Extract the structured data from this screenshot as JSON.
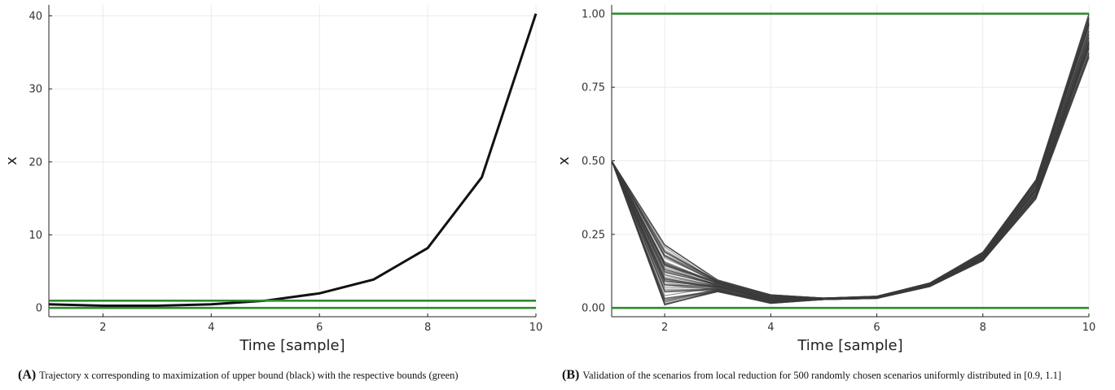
{
  "chart_data": [
    {
      "panel": "A",
      "type": "line",
      "xlabel": "Time [sample]",
      "ylabel": "x",
      "xlim": [
        1,
        10
      ],
      "ylim": [
        -1.2,
        41.5
      ],
      "xticks": [
        2,
        4,
        6,
        8,
        10
      ],
      "yticks": [
        0,
        10,
        20,
        30,
        40
      ],
      "ytick_labels": [
        "0",
        "10",
        "20",
        "30",
        "40"
      ],
      "grid": true,
      "legend": "none",
      "series": [
        {
          "color": "#111111",
          "x": [
            1,
            2,
            3,
            4,
            5,
            6,
            7,
            8,
            9,
            10
          ],
          "y": [
            0.5,
            0.3,
            0.3,
            0.5,
            1.0,
            2.0,
            3.9,
            8.2,
            17.9,
            40.3
          ]
        },
        {
          "color": "#2e8b2e",
          "x": [
            1,
            10
          ],
          "y": [
            1,
            1
          ]
        },
        {
          "color": "#2e8b2e",
          "x": [
            1,
            10
          ],
          "y": [
            0,
            0
          ]
        }
      ],
      "caption_letter": "(A)",
      "caption_text": "Trajectory x corresponding to maximization of upper bound (black) with the respective bounds (green)"
    },
    {
      "panel": "B",
      "type": "line",
      "xlabel": "Time [sample]",
      "ylabel": "x",
      "xlim": [
        1,
        10
      ],
      "ylim": [
        -0.03,
        1.03
      ],
      "xticks": [
        2,
        4,
        6,
        8,
        10
      ],
      "yticks": [
        0,
        0.25,
        0.5,
        0.75,
        1.0
      ],
      "ytick_labels": [
        "0.00",
        "0.25",
        "0.50",
        "0.75",
        "1.00"
      ],
      "grid": true,
      "legend": "none",
      "scenario_count": 500,
      "scenario_color": "#3a3a3a",
      "scenario_envelope": {
        "x": [
          1,
          2,
          3,
          4,
          5,
          6,
          7,
          8,
          9,
          10
        ],
        "low": [
          0.5,
          0.01,
          0.055,
          0.015,
          0.028,
          0.032,
          0.072,
          0.16,
          0.37,
          0.85
        ],
        "high": [
          0.5,
          0.215,
          0.095,
          0.045,
          0.034,
          0.04,
          0.085,
          0.19,
          0.435,
          1.0
        ]
      },
      "series": [
        {
          "color": "#2e8b2e",
          "x": [
            1,
            10
          ],
          "y": [
            1,
            1
          ]
        },
        {
          "color": "#2e8b2e",
          "x": [
            1,
            10
          ],
          "y": [
            0,
            0
          ]
        }
      ],
      "caption_letter": "(B)",
      "caption_text": "Validation of the scenarios from local reduction for 500 randomly chosen scenarios uniformly distributed in [0.9, 1.1]"
    }
  ]
}
